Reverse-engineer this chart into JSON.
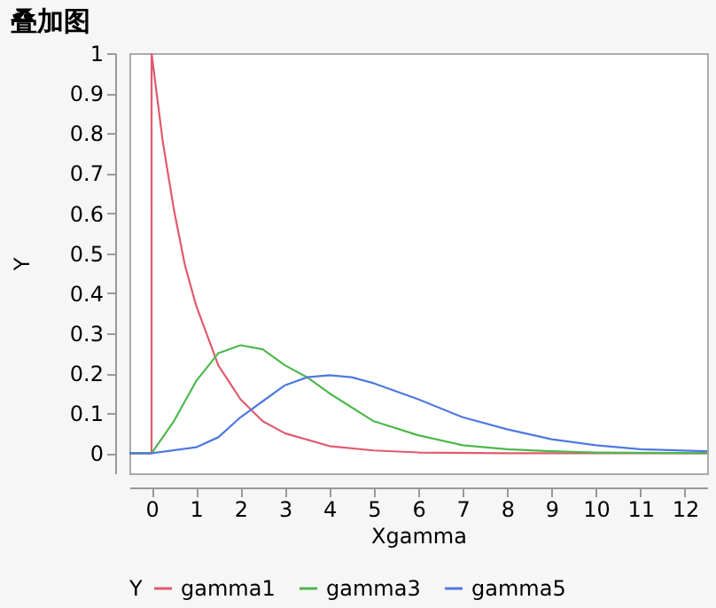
{
  "chart_data": {
    "type": "line",
    "title": "叠加图",
    "xlabel": "Xgamma",
    "ylabel": "Y",
    "legend_title": "Y",
    "xlim": [
      -0.5,
      12.5
    ],
    "xticks": [
      0,
      1,
      2,
      3,
      4,
      5,
      6,
      7,
      8,
      9,
      10,
      11,
      12
    ],
    "ylim": [
      -0.05,
      1.0
    ],
    "yticks": [
      0,
      0.1,
      0.2,
      0.3,
      0.4,
      0.5,
      0.6,
      0.7,
      0.8,
      0.9,
      1
    ],
    "grid": false,
    "legend": "bottom",
    "marker": "none",
    "line_style": "solid",
    "series": [
      {
        "name": "gamma1",
        "color": "#e05a6e",
        "x": [
          -0.5,
          0,
          0,
          0.25,
          0.5,
          0.75,
          1,
          1.5,
          2,
          2.5,
          3,
          4,
          5,
          6,
          8,
          10,
          12.5
        ],
        "values": [
          0,
          0,
          1,
          0.78,
          0.61,
          0.47,
          0.37,
          0.22,
          0.135,
          0.08,
          0.05,
          0.018,
          0.007,
          0.002,
          0,
          0,
          0
        ]
      },
      {
        "name": "gamma3",
        "color": "#4cb84c",
        "x": [
          -0.5,
          0,
          0.5,
          1,
          1.5,
          2,
          2.5,
          3,
          3.5,
          4,
          5,
          6,
          7,
          8,
          9,
          10,
          12.5
        ],
        "values": [
          0,
          0,
          0.08,
          0.18,
          0.25,
          0.27,
          0.26,
          0.22,
          0.19,
          0.15,
          0.08,
          0.045,
          0.02,
          0.01,
          0.005,
          0.002,
          0
        ]
      },
      {
        "name": "gamma5",
        "color": "#4f79e0",
        "x": [
          -0.5,
          0,
          1,
          1.5,
          2,
          2.5,
          3,
          3.5,
          4,
          4.5,
          5,
          6,
          7,
          8,
          9,
          10,
          11,
          12.5
        ],
        "values": [
          0,
          0,
          0.015,
          0.04,
          0.09,
          0.13,
          0.17,
          0.19,
          0.195,
          0.19,
          0.175,
          0.135,
          0.09,
          0.06,
          0.035,
          0.02,
          0.01,
          0.005
        ]
      }
    ]
  }
}
